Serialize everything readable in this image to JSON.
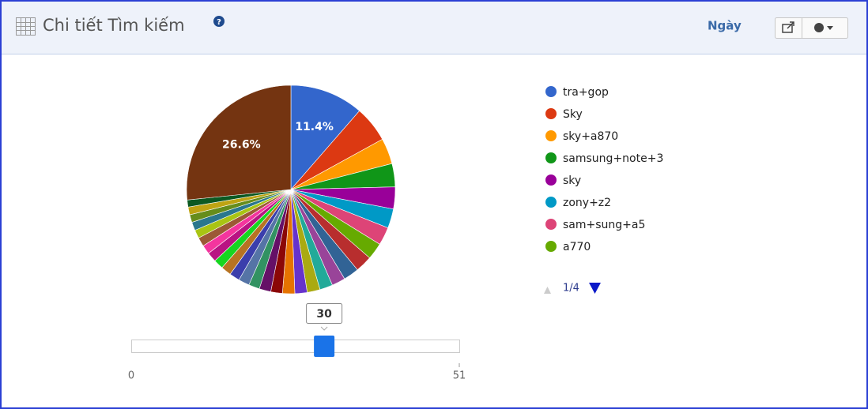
{
  "chart_data": {
    "type": "pie",
    "title": "Chi tiết Tìm kiếm",
    "categories": [
      "tra+gop",
      "Sky",
      "sky+a870",
      "samsung+note+3",
      "sky",
      "zony+z2",
      "sam+sung+a5",
      "a770",
      null,
      null,
      null,
      null,
      null,
      null,
      null,
      null,
      null,
      null,
      null,
      null,
      null,
      null,
      null,
      null,
      null,
      null,
      null,
      null,
      null,
      null,
      null
    ],
    "values": [
      11.4,
      5.6,
      4.0,
      3.6,
      3.4,
      3.0,
      2.8,
      2.6,
      2.6,
      2.4,
      2.1,
      2.0,
      2.0,
      1.9,
      1.9,
      1.8,
      1.8,
      1.7,
      1.7,
      1.6,
      1.6,
      1.5,
      1.5,
      1.4,
      1.4,
      1.3,
      1.3,
      1.2,
      1.2,
      1.1,
      26.6
    ],
    "value_labels": [
      "11.4%",
      null,
      null,
      null,
      null,
      null,
      null,
      null,
      null,
      null,
      null,
      null,
      null,
      null,
      null,
      null,
      null,
      null,
      null,
      null,
      null,
      null,
      null,
      null,
      null,
      null,
      null,
      null,
      null,
      null,
      "26.6%"
    ],
    "colors": [
      "#3366cc",
      "#dc3912",
      "#ff9900",
      "#109618",
      "#990099",
      "#0099c6",
      "#dd4477",
      "#66aa00",
      "#b82e2e",
      "#316395",
      "#994499",
      "#22aa99",
      "#aaaa11",
      "#6633cc",
      "#e67300",
      "#8b0707",
      "#651067",
      "#329262",
      "#5574a6",
      "#3b3eac",
      "#b77322",
      "#16d620",
      "#b91383",
      "#f4359e",
      "#9c5935",
      "#a9c413",
      "#2a778d",
      "#668d1c",
      "#bea413",
      "#0c5922",
      "#743411"
    ],
    "legend_page": "1/4"
  },
  "controls": {
    "period": "Ngày"
  },
  "slider": {
    "min": 0,
    "max": 51,
    "value": 30
  }
}
